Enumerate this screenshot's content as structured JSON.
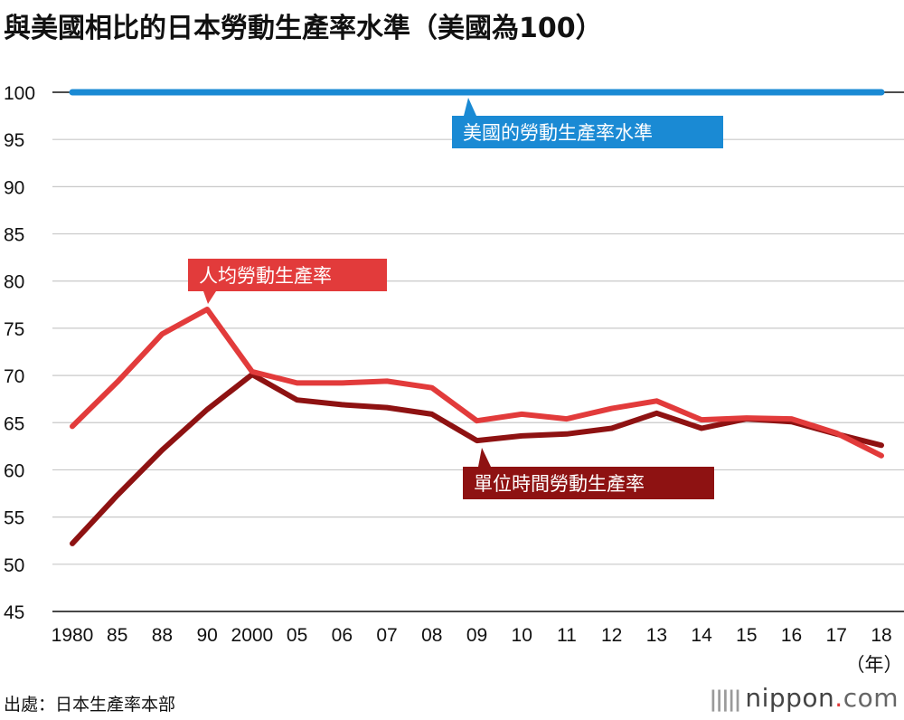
{
  "title": "與美國相比的日本勞動生產率水準（美國為100）",
  "source": "出處：日本生產率本部",
  "brand": {
    "bars_glyph": "|||||",
    "name": "nippon",
    "dot": ".",
    "tld": "com"
  },
  "x_unit": "（年）",
  "colors": {
    "usa": "#1a8ad4",
    "per_capita": "#e23b3b",
    "per_hour": "#8e1212",
    "grid": "#c8c8c8"
  },
  "chart_data": {
    "type": "line",
    "title": "與美國相比的日本勞動生產率水準（美國為100）",
    "xlabel": "（年）",
    "ylabel": "",
    "ylim": [
      45,
      100
    ],
    "yticks": [
      45,
      50,
      55,
      60,
      65,
      70,
      75,
      80,
      85,
      90,
      95,
      100
    ],
    "categories": [
      "1980",
      "85",
      "88",
      "90",
      "2000",
      "05",
      "06",
      "07",
      "08",
      "09",
      "10",
      "11",
      "12",
      "13",
      "14",
      "15",
      "16",
      "17",
      "18"
    ],
    "grid": true,
    "series": [
      {
        "name": "美國的勞動生產率水準",
        "color": "#1a8ad4",
        "values": [
          100,
          100,
          100,
          100,
          100,
          100,
          100,
          100,
          100,
          100,
          100,
          100,
          100,
          100,
          100,
          100,
          100,
          100,
          100
        ]
      },
      {
        "name": "人均勞動生產率",
        "color": "#e23b3b",
        "values": [
          64.6,
          69.3,
          74.4,
          77.0,
          70.4,
          69.2,
          69.2,
          69.4,
          68.7,
          65.2,
          65.9,
          65.4,
          66.5,
          67.3,
          65.3,
          65.5,
          65.4,
          63.9,
          61.5
        ]
      },
      {
        "name": "單位時間勞動生產率",
        "color": "#8e1212",
        "values": [
          52.2,
          57.3,
          62.1,
          66.4,
          70.1,
          67.4,
          66.9,
          66.6,
          65.9,
          63.1,
          63.6,
          63.8,
          64.4,
          66.0,
          64.4,
          65.4,
          65.1,
          63.8,
          62.6
        ]
      }
    ]
  }
}
